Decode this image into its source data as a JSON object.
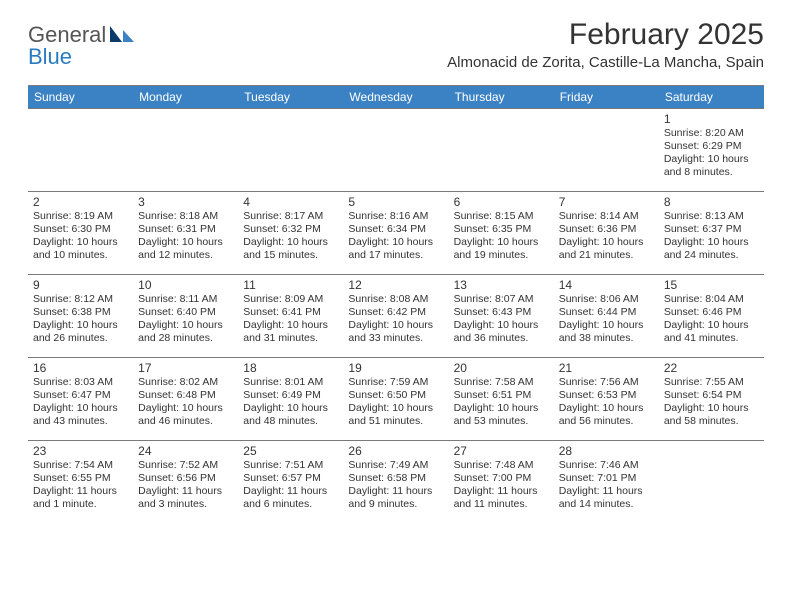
{
  "brand": {
    "part1": "General",
    "part2": "Blue"
  },
  "title": "February 2025",
  "location": "Almonacid de Zorita, Castille-La Mancha, Spain",
  "colors": {
    "header_bg": "#3b82c4",
    "header_text": "#ffffff",
    "text": "#333333",
    "border": "#7a7a7a",
    "logo_accent": "#2b7bbf",
    "logo_dark": "#0b3a6b"
  },
  "daynames": [
    "Sunday",
    "Monday",
    "Tuesday",
    "Wednesday",
    "Thursday",
    "Friday",
    "Saturday"
  ],
  "weeks": [
    [
      {
        "day": "",
        "sunrise": "",
        "sunset": "",
        "daylight": ""
      },
      {
        "day": "",
        "sunrise": "",
        "sunset": "",
        "daylight": ""
      },
      {
        "day": "",
        "sunrise": "",
        "sunset": "",
        "daylight": ""
      },
      {
        "day": "",
        "sunrise": "",
        "sunset": "",
        "daylight": ""
      },
      {
        "day": "",
        "sunrise": "",
        "sunset": "",
        "daylight": ""
      },
      {
        "day": "",
        "sunrise": "",
        "sunset": "",
        "daylight": ""
      },
      {
        "day": "1",
        "sunrise": "Sunrise: 8:20 AM",
        "sunset": "Sunset: 6:29 PM",
        "daylight": "Daylight: 10 hours and 8 minutes."
      }
    ],
    [
      {
        "day": "2",
        "sunrise": "Sunrise: 8:19 AM",
        "sunset": "Sunset: 6:30 PM",
        "daylight": "Daylight: 10 hours and 10 minutes."
      },
      {
        "day": "3",
        "sunrise": "Sunrise: 8:18 AM",
        "sunset": "Sunset: 6:31 PM",
        "daylight": "Daylight: 10 hours and 12 minutes."
      },
      {
        "day": "4",
        "sunrise": "Sunrise: 8:17 AM",
        "sunset": "Sunset: 6:32 PM",
        "daylight": "Daylight: 10 hours and 15 minutes."
      },
      {
        "day": "5",
        "sunrise": "Sunrise: 8:16 AM",
        "sunset": "Sunset: 6:34 PM",
        "daylight": "Daylight: 10 hours and 17 minutes."
      },
      {
        "day": "6",
        "sunrise": "Sunrise: 8:15 AM",
        "sunset": "Sunset: 6:35 PM",
        "daylight": "Daylight: 10 hours and 19 minutes."
      },
      {
        "day": "7",
        "sunrise": "Sunrise: 8:14 AM",
        "sunset": "Sunset: 6:36 PM",
        "daylight": "Daylight: 10 hours and 21 minutes."
      },
      {
        "day": "8",
        "sunrise": "Sunrise: 8:13 AM",
        "sunset": "Sunset: 6:37 PM",
        "daylight": "Daylight: 10 hours and 24 minutes."
      }
    ],
    [
      {
        "day": "9",
        "sunrise": "Sunrise: 8:12 AM",
        "sunset": "Sunset: 6:38 PM",
        "daylight": "Daylight: 10 hours and 26 minutes."
      },
      {
        "day": "10",
        "sunrise": "Sunrise: 8:11 AM",
        "sunset": "Sunset: 6:40 PM",
        "daylight": "Daylight: 10 hours and 28 minutes."
      },
      {
        "day": "11",
        "sunrise": "Sunrise: 8:09 AM",
        "sunset": "Sunset: 6:41 PM",
        "daylight": "Daylight: 10 hours and 31 minutes."
      },
      {
        "day": "12",
        "sunrise": "Sunrise: 8:08 AM",
        "sunset": "Sunset: 6:42 PM",
        "daylight": "Daylight: 10 hours and 33 minutes."
      },
      {
        "day": "13",
        "sunrise": "Sunrise: 8:07 AM",
        "sunset": "Sunset: 6:43 PM",
        "daylight": "Daylight: 10 hours and 36 minutes."
      },
      {
        "day": "14",
        "sunrise": "Sunrise: 8:06 AM",
        "sunset": "Sunset: 6:44 PM",
        "daylight": "Daylight: 10 hours and 38 minutes."
      },
      {
        "day": "15",
        "sunrise": "Sunrise: 8:04 AM",
        "sunset": "Sunset: 6:46 PM",
        "daylight": "Daylight: 10 hours and 41 minutes."
      }
    ],
    [
      {
        "day": "16",
        "sunrise": "Sunrise: 8:03 AM",
        "sunset": "Sunset: 6:47 PM",
        "daylight": "Daylight: 10 hours and 43 minutes."
      },
      {
        "day": "17",
        "sunrise": "Sunrise: 8:02 AM",
        "sunset": "Sunset: 6:48 PM",
        "daylight": "Daylight: 10 hours and 46 minutes."
      },
      {
        "day": "18",
        "sunrise": "Sunrise: 8:01 AM",
        "sunset": "Sunset: 6:49 PM",
        "daylight": "Daylight: 10 hours and 48 minutes."
      },
      {
        "day": "19",
        "sunrise": "Sunrise: 7:59 AM",
        "sunset": "Sunset: 6:50 PM",
        "daylight": "Daylight: 10 hours and 51 minutes."
      },
      {
        "day": "20",
        "sunrise": "Sunrise: 7:58 AM",
        "sunset": "Sunset: 6:51 PM",
        "daylight": "Daylight: 10 hours and 53 minutes."
      },
      {
        "day": "21",
        "sunrise": "Sunrise: 7:56 AM",
        "sunset": "Sunset: 6:53 PM",
        "daylight": "Daylight: 10 hours and 56 minutes."
      },
      {
        "day": "22",
        "sunrise": "Sunrise: 7:55 AM",
        "sunset": "Sunset: 6:54 PM",
        "daylight": "Daylight: 10 hours and 58 minutes."
      }
    ],
    [
      {
        "day": "23",
        "sunrise": "Sunrise: 7:54 AM",
        "sunset": "Sunset: 6:55 PM",
        "daylight": "Daylight: 11 hours and 1 minute."
      },
      {
        "day": "24",
        "sunrise": "Sunrise: 7:52 AM",
        "sunset": "Sunset: 6:56 PM",
        "daylight": "Daylight: 11 hours and 3 minutes."
      },
      {
        "day": "25",
        "sunrise": "Sunrise: 7:51 AM",
        "sunset": "Sunset: 6:57 PM",
        "daylight": "Daylight: 11 hours and 6 minutes."
      },
      {
        "day": "26",
        "sunrise": "Sunrise: 7:49 AM",
        "sunset": "Sunset: 6:58 PM",
        "daylight": "Daylight: 11 hours and 9 minutes."
      },
      {
        "day": "27",
        "sunrise": "Sunrise: 7:48 AM",
        "sunset": "Sunset: 7:00 PM",
        "daylight": "Daylight: 11 hours and 11 minutes."
      },
      {
        "day": "28",
        "sunrise": "Sunrise: 7:46 AM",
        "sunset": "Sunset: 7:01 PM",
        "daylight": "Daylight: 11 hours and 14 minutes."
      },
      {
        "day": "",
        "sunrise": "",
        "sunset": "",
        "daylight": ""
      }
    ]
  ]
}
